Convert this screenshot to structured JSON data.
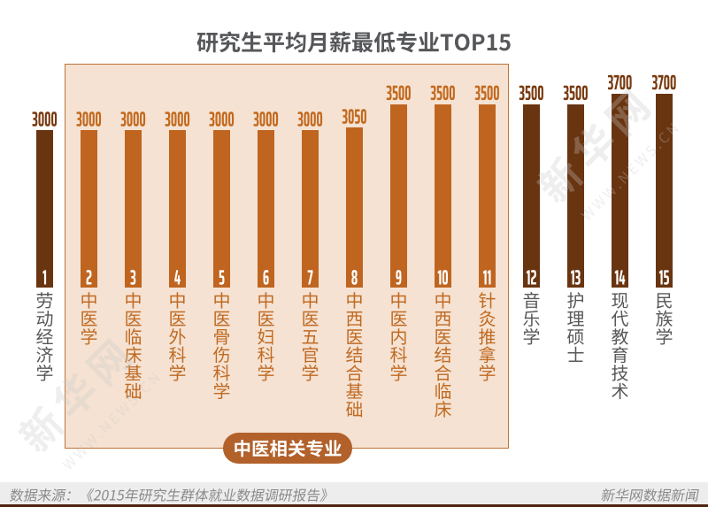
{
  "title": "研究生平均月薪最低专业TOP15",
  "chart_data": {
    "type": "bar",
    "title": "研究生平均月薪最低专业TOP15",
    "orientation": "vertical",
    "value_label_position": "above-bar",
    "categories": [
      "劳动经济学",
      "中医学",
      "中医临床基础",
      "中医外科学",
      "中医骨伤科学",
      "中医妇科学",
      "中医五官学",
      "中西医结合基础",
      "中医内科学",
      "中西医结合临床",
      "针灸推拿学",
      "音乐学",
      "护理硕士",
      "现代教育技术",
      "民族学"
    ],
    "values": [
      3000,
      3000,
      3000,
      3000,
      3000,
      3000,
      3000,
      3050,
      3500,
      3500,
      3500,
      3500,
      3500,
      3700,
      3700
    ],
    "items": [
      {
        "rank": 1,
        "major": "劳动经济学",
        "value": 3000,
        "in_highlight_group": false
      },
      {
        "rank": 2,
        "major": "中医学",
        "value": 3000,
        "in_highlight_group": true
      },
      {
        "rank": 3,
        "major": "中医临床基础",
        "value": 3000,
        "in_highlight_group": true
      },
      {
        "rank": 4,
        "major": "中医外科学",
        "value": 3000,
        "in_highlight_group": true
      },
      {
        "rank": 5,
        "major": "中医骨伤科学",
        "value": 3000,
        "in_highlight_group": true
      },
      {
        "rank": 6,
        "major": "中医妇科学",
        "value": 3000,
        "in_highlight_group": true
      },
      {
        "rank": 7,
        "major": "中医五官学",
        "value": 3000,
        "in_highlight_group": true
      },
      {
        "rank": 8,
        "major": "中西医结合基础",
        "value": 3050,
        "in_highlight_group": true
      },
      {
        "rank": 9,
        "major": "中医内科学",
        "value": 3500,
        "in_highlight_group": true
      },
      {
        "rank": 10,
        "major": "中西医结合临床",
        "value": 3500,
        "in_highlight_group": true
      },
      {
        "rank": 11,
        "major": "针灸推拿学",
        "value": 3500,
        "in_highlight_group": true
      },
      {
        "rank": 12,
        "major": "音乐学",
        "value": 3500,
        "in_highlight_group": false
      },
      {
        "rank": 13,
        "major": "护理硕士",
        "value": 3500,
        "in_highlight_group": false
      },
      {
        "rank": 14,
        "major": "现代教育技术",
        "value": 3700,
        "in_highlight_group": false
      },
      {
        "rank": 15,
        "major": "民族学",
        "value": 3700,
        "in_highlight_group": false
      }
    ],
    "highlight_group": {
      "label": "中医相关专业",
      "member_ranks": [
        2,
        3,
        4,
        5,
        6,
        7,
        8,
        9,
        10,
        11
      ]
    },
    "ylim": [
      0,
      3700
    ],
    "grid": false,
    "legend": false
  },
  "footer": {
    "source": "数据来源：《2015年研究生群体就业数据调研报告》",
    "credit": "新华网数据新闻"
  },
  "watermark": {
    "text": "新华网",
    "subtext": "WWW.NEWS.CN"
  },
  "colors": {
    "bar_highlight": "#bf6520",
    "bar_normal": "#693410",
    "value_highlight": "#c2691e",
    "value_normal": "#78390e",
    "label_highlight": "#c06a22",
    "label_normal": "#57585a",
    "title_text": "#56575a",
    "badge_bg": "#b2612b",
    "box_bg": "#f5e2d2",
    "box_border": "#bd7338",
    "footer_bg": "#ededed",
    "footer_text": "#8a8a8a",
    "bottom_strip": "#4f2310",
    "rank_text": "#ffffff"
  }
}
